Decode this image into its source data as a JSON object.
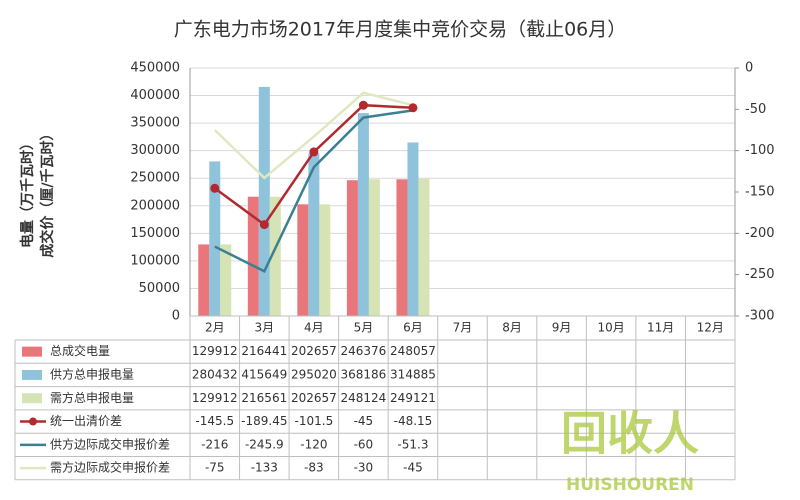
{
  "chart_data": {
    "type": "bar",
    "title": "广东电力市场2017年月度集中竞价交易（截止06月）",
    "y_label": "电量（万千瓦时）",
    "y2_label": "成交价（厘/千瓦时）",
    "categories": [
      "2月",
      "3月",
      "4月",
      "5月",
      "6月",
      "7月",
      "8月",
      "9月",
      "10月",
      "11月",
      "12月"
    ],
    "series": [
      {
        "name": "总成交电量",
        "type": "bar",
        "color": "#e8767a",
        "values": [
          129912,
          216441,
          202657,
          246376,
          248057,
          null,
          null,
          null,
          null,
          null,
          null
        ]
      },
      {
        "name": "供方总申报电量",
        "type": "bar",
        "color": "#8fc3dc",
        "values": [
          280432,
          415649,
          295020,
          368186,
          314885,
          null,
          null,
          null,
          null,
          null,
          null
        ]
      },
      {
        "name": "需方总申报电量",
        "type": "bar",
        "color": "#d6e4b5",
        "values": [
          129912,
          216561,
          202657,
          248124,
          249121,
          null,
          null,
          null,
          null,
          null,
          null
        ]
      },
      {
        "name": "统一出清价差",
        "type": "line",
        "axis": "y2",
        "color": "#b22a2e",
        "marker": true,
        "values": [
          -145.5,
          -189.45,
          -101.5,
          -45,
          -48.15,
          null,
          null,
          null,
          null,
          null,
          null
        ]
      },
      {
        "name": "供方边际成交申报价差",
        "type": "line",
        "axis": "y2",
        "color": "#3c7f90",
        "marker": false,
        "values": [
          -216,
          -245.9,
          -120,
          -60,
          -51.3,
          null,
          null,
          null,
          null,
          null,
          null
        ]
      },
      {
        "name": "需方边际成交申报价差",
        "type": "line",
        "axis": "y2",
        "color": "#dfe8c0",
        "marker": false,
        "values": [
          -75,
          -133,
          -83,
          -30,
          -45,
          null,
          null,
          null,
          null,
          null,
          null
        ]
      }
    ],
    "ylim": [
      0,
      450000
    ],
    "yticks": [
      0,
      50000,
      100000,
      150000,
      200000,
      250000,
      300000,
      350000,
      400000,
      450000
    ],
    "y2lim": [
      -300,
      0
    ],
    "y2ticks": [
      -300,
      -250,
      -200,
      -150,
      -100,
      -50,
      0
    ],
    "grid": true,
    "watermark": {
      "logo": "回收人",
      "brand": "HUISHOUREN"
    }
  }
}
